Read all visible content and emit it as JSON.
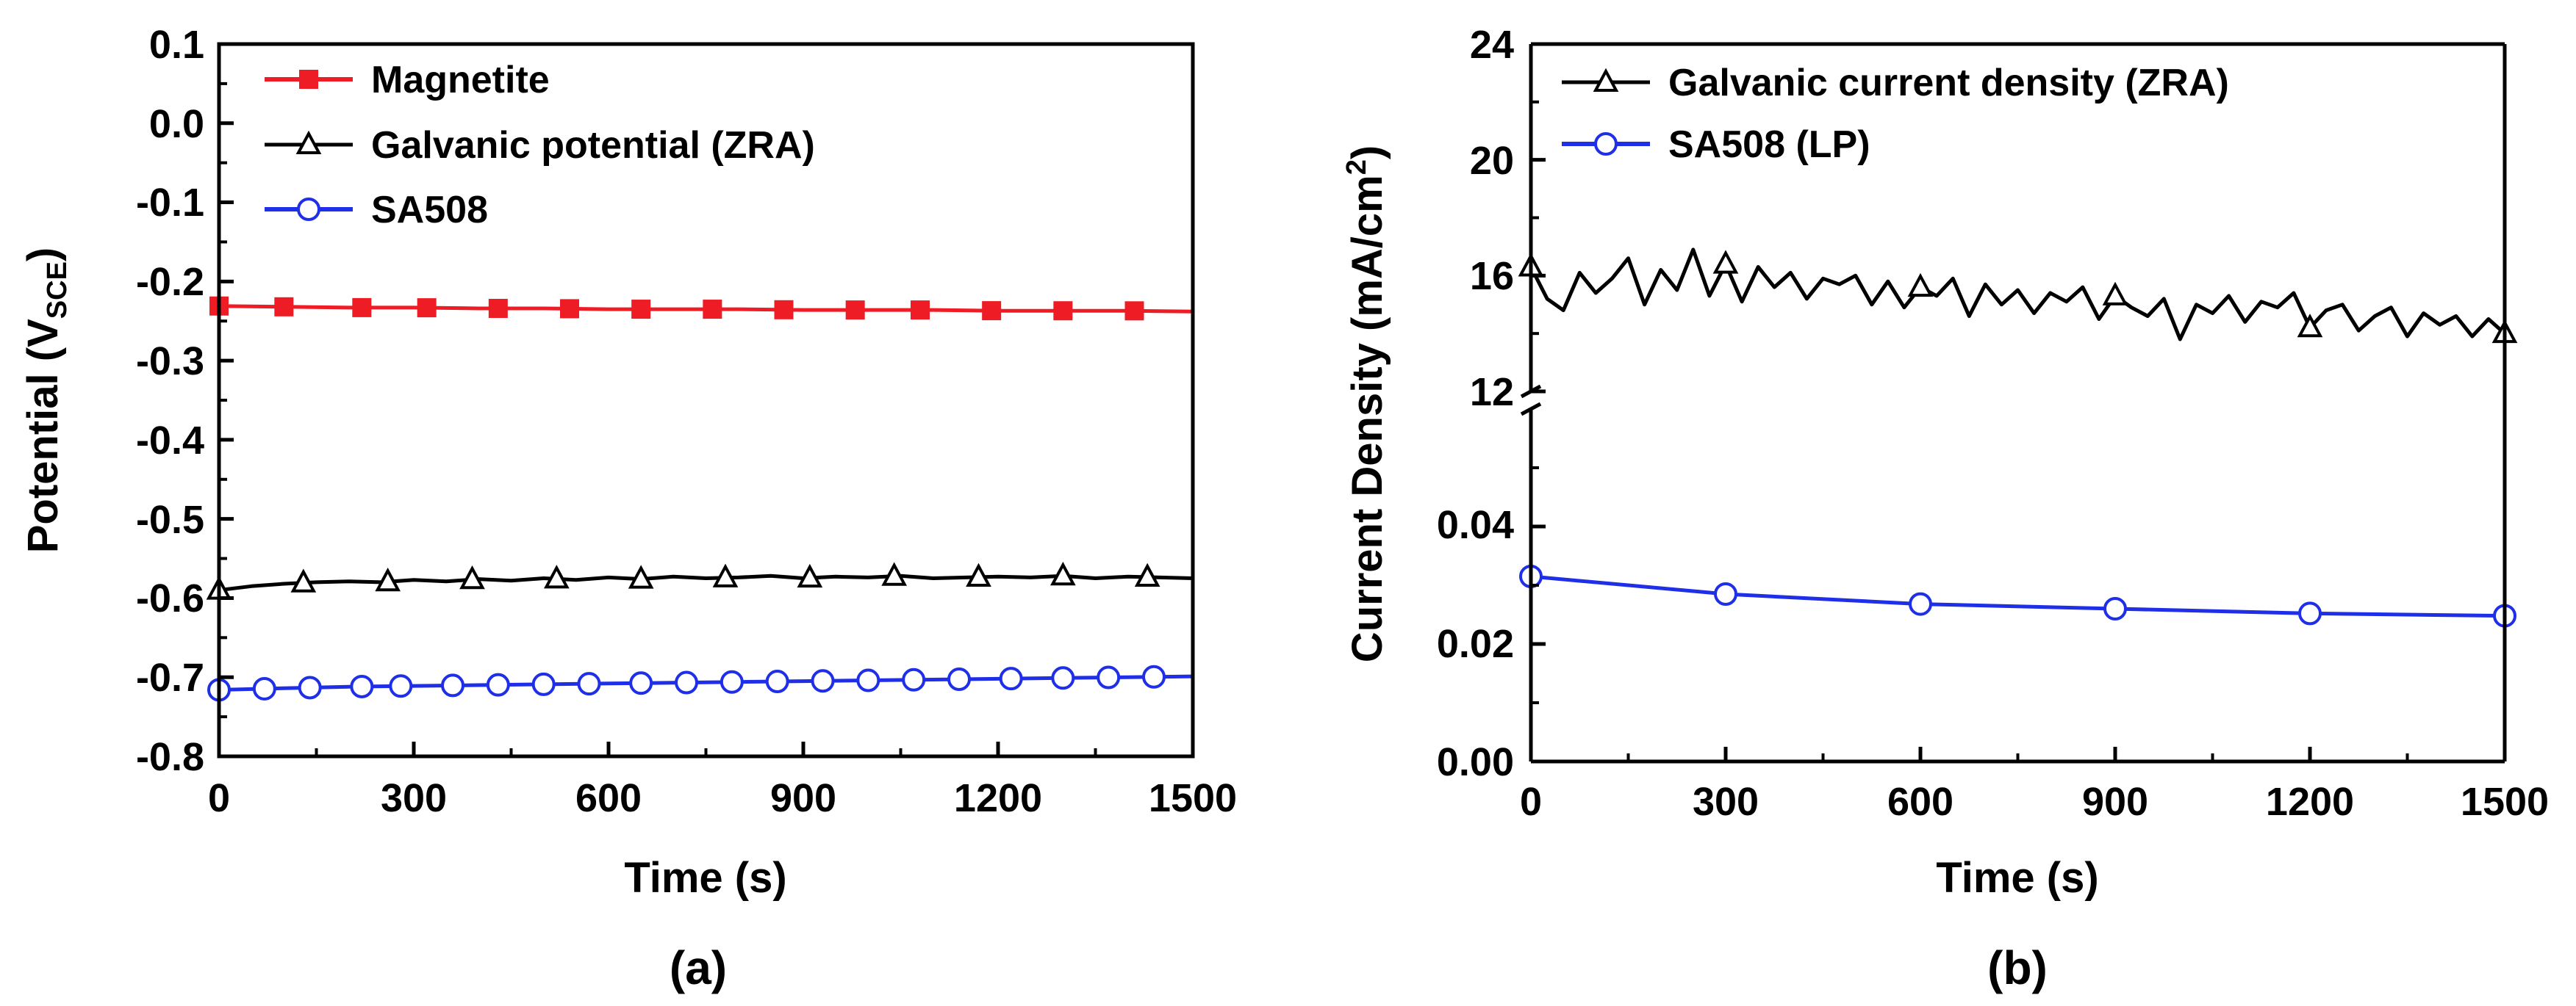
{
  "chart_data": [
    {
      "type": "line",
      "panel_label": "(a)",
      "xlabel": "Time (s)",
      "ylabel": {
        "main": "Potential (V",
        "sub": "SCE",
        "tail": ")"
      },
      "xlim": [
        0,
        1500
      ],
      "ylim": [
        -0.8,
        0.1
      ],
      "xticks": [
        0,
        300,
        600,
        900,
        1200,
        1500
      ],
      "xtick_labels": [
        "0",
        "300",
        "600",
        "900",
        "1200",
        "1500"
      ],
      "yticks": [
        0.1,
        0.0,
        -0.1,
        -0.2,
        -0.3,
        -0.4,
        -0.5,
        -0.6,
        -0.7,
        -0.8
      ],
      "ytick_labels": [
        "0.1",
        "0.0",
        "-0.1",
        "-0.2",
        "-0.3",
        "-0.4",
        "-0.5",
        "-0.6",
        "-0.7",
        "-0.8"
      ],
      "legend_position": "top-left",
      "series": [
        {
          "name": "Magnetite",
          "color": "#ee1c24",
          "marker": "square-filled",
          "x": [
            0,
            100,
            200,
            300,
            400,
            500,
            600,
            700,
            800,
            900,
            1000,
            1100,
            1200,
            1300,
            1400,
            1500
          ],
          "y": [
            -0.231,
            -0.232,
            -0.233,
            -0.233,
            -0.234,
            -0.234,
            -0.235,
            -0.235,
            -0.235,
            -0.236,
            -0.236,
            -0.236,
            -0.237,
            -0.237,
            -0.237,
            -0.238
          ],
          "marker_x": [
            0,
            100,
            220,
            320,
            430,
            540,
            650,
            760,
            870,
            980,
            1080,
            1190,
            1300,
            1410
          ]
        },
        {
          "name": "Galvanic potential (ZRA)",
          "color": "#000000",
          "marker": "triangle-open",
          "x": [
            0,
            50,
            100,
            150,
            200,
            250,
            300,
            350,
            400,
            450,
            500,
            550,
            600,
            650,
            700,
            750,
            800,
            850,
            900,
            950,
            1000,
            1050,
            1100,
            1150,
            1200,
            1250,
            1300,
            1350,
            1400,
            1450,
            1500
          ],
          "y": [
            -0.59,
            -0.585,
            -0.582,
            -0.58,
            -0.579,
            -0.58,
            -0.577,
            -0.579,
            -0.576,
            -0.578,
            -0.575,
            -0.577,
            -0.574,
            -0.576,
            -0.573,
            -0.575,
            -0.574,
            -0.572,
            -0.575,
            -0.573,
            -0.574,
            -0.572,
            -0.575,
            -0.574,
            -0.573,
            -0.574,
            -0.572,
            -0.575,
            -0.573,
            -0.574,
            -0.575
          ],
          "marker_x": [
            0,
            130,
            260,
            390,
            520,
            650,
            780,
            910,
            1040,
            1170,
            1300,
            1430
          ]
        },
        {
          "name": "SA508",
          "color": "#1f2fe8",
          "marker": "circle-open",
          "x": [
            0,
            100,
            200,
            300,
            400,
            500,
            600,
            700,
            800,
            900,
            1000,
            1100,
            1200,
            1300,
            1400,
            1500
          ],
          "y": [
            -0.716,
            -0.714,
            -0.712,
            -0.711,
            -0.71,
            -0.709,
            -0.708,
            -0.707,
            -0.706,
            -0.705,
            -0.704,
            -0.703,
            -0.702,
            -0.701,
            -0.7,
            -0.699
          ],
          "marker_x": [
            0,
            70,
            140,
            220,
            280,
            360,
            430,
            500,
            570,
            650,
            720,
            790,
            860,
            930,
            1000,
            1070,
            1140,
            1220,
            1300,
            1370,
            1440
          ]
        }
      ]
    },
    {
      "type": "line",
      "panel_label": "(b)",
      "xlabel": "Time (s)",
      "ylabel": {
        "main": "Current Density (mA/cm",
        "sup": "2",
        "tail": ")"
      },
      "xlim": [
        0,
        1500
      ],
      "y_axis_break": true,
      "upper_ylim": [
        12,
        24
      ],
      "lower_ylim": [
        0.0,
        0.06
      ],
      "xticks": [
        0,
        300,
        600,
        900,
        1200,
        1500
      ],
      "xtick_labels": [
        "0",
        "300",
        "600",
        "900",
        "1200",
        "1500"
      ],
      "upper_yticks": [
        12,
        16,
        20,
        24
      ],
      "upper_ytick_labels": [
        "12",
        "16",
        "20",
        "24"
      ],
      "lower_yticks": [
        0.0,
        0.02,
        0.04
      ],
      "lower_ytick_labels": [
        "0.00",
        "0.02",
        "0.04"
      ],
      "legend_position": "top-left",
      "series": [
        {
          "name": "Galvanic current density (ZRA)",
          "color": "#000000",
          "marker": "triangle-open",
          "axis": "upper",
          "x": [
            0,
            25,
            50,
            75,
            100,
            125,
            150,
            175,
            200,
            225,
            250,
            275,
            300,
            325,
            350,
            375,
            400,
            425,
            450,
            475,
            500,
            525,
            550,
            575,
            600,
            625,
            650,
            675,
            700,
            725,
            750,
            775,
            800,
            825,
            850,
            875,
            900,
            925,
            950,
            975,
            1000,
            1025,
            1050,
            1075,
            1100,
            1125,
            1150,
            1175,
            1200,
            1225,
            1250,
            1275,
            1300,
            1325,
            1350,
            1375,
            1400,
            1425,
            1450,
            1475,
            1500
          ],
          "y": [
            16.3,
            15.2,
            14.8,
            16.1,
            15.4,
            15.9,
            16.6,
            15.0,
            16.2,
            15.5,
            16.9,
            15.3,
            16.4,
            15.1,
            16.3,
            15.6,
            16.1,
            15.2,
            15.9,
            15.7,
            16.0,
            15.0,
            15.8,
            14.9,
            15.6,
            15.3,
            15.9,
            14.6,
            15.7,
            15.0,
            15.5,
            14.7,
            15.4,
            15.1,
            15.6,
            14.5,
            15.3,
            14.9,
            14.6,
            15.2,
            13.8,
            15.0,
            14.7,
            15.3,
            14.4,
            15.1,
            14.9,
            15.4,
            14.2,
            14.8,
            15.0,
            14.1,
            14.6,
            14.9,
            13.9,
            14.7,
            14.3,
            14.6,
            13.9,
            14.5,
            14.0
          ],
          "marker_x": [
            0,
            300,
            600,
            900,
            1200,
            1500
          ]
        },
        {
          "name": "SA508 (LP)",
          "color": "#1f2fe8",
          "marker": "circle-open",
          "axis": "lower",
          "x": [
            0,
            300,
            600,
            900,
            1200,
            1500
          ],
          "y": [
            0.0315,
            0.0285,
            0.0268,
            0.026,
            0.0252,
            0.0248
          ],
          "marker_x": [
            0,
            300,
            600,
            900,
            1200,
            1500
          ]
        }
      ]
    }
  ]
}
